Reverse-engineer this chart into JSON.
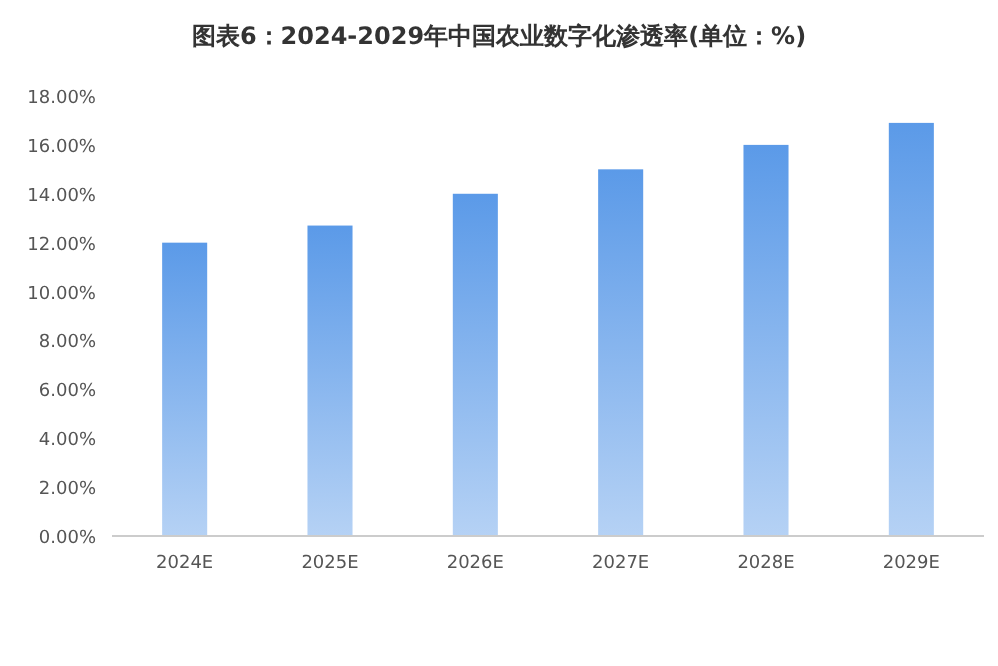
{
  "chart_data": {
    "type": "bar",
    "title": "图表6：2024-2029年中国农业数字化渗透率(单位：%)",
    "categories": [
      "2024E",
      "2025E",
      "2026E",
      "2027E",
      "2028E",
      "2029E"
    ],
    "values": [
      12,
      12.7,
      14,
      15,
      16,
      16.9
    ],
    "color": "#5b9ae8",
    "ylim": [
      0,
      18
    ],
    "yticks": [
      {
        "value": 0,
        "label": "0.00%"
      },
      {
        "value": 2,
        "label": "2.00%"
      },
      {
        "value": 4,
        "label": "4.00%"
      },
      {
        "value": 6,
        "label": "6.00%"
      },
      {
        "value": 8,
        "label": "8.00%"
      },
      {
        "value": 10,
        "label": "10.00%"
      },
      {
        "value": 12,
        "label": "12.00%"
      },
      {
        "value": 14,
        "label": "14.00%"
      },
      {
        "value": 16,
        "label": "16.00%"
      },
      {
        "value": 18,
        "label": "18.00%"
      }
    ],
    "grid": false
  }
}
